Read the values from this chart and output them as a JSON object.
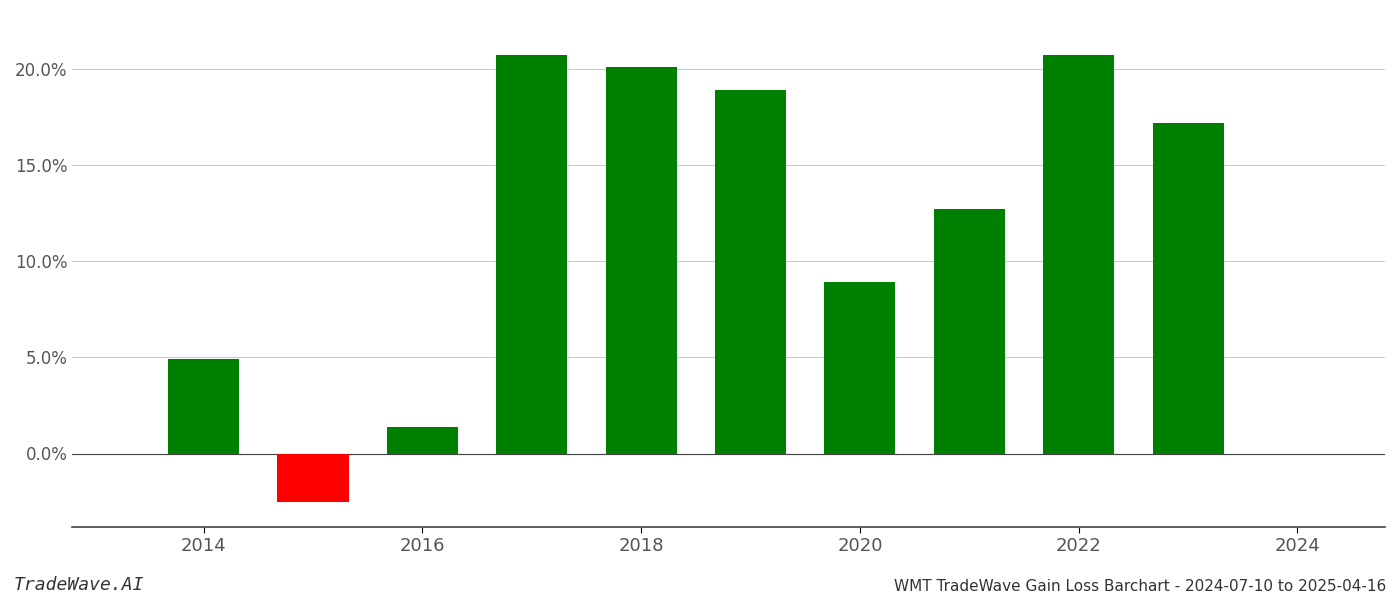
{
  "years": [
    2014,
    2015,
    2016,
    2017,
    2018,
    2019,
    2020,
    2021,
    2022,
    2023
  ],
  "values": [
    0.049,
    -0.025,
    0.014,
    0.207,
    0.201,
    0.189,
    0.089,
    0.127,
    0.207,
    0.172
  ],
  "colors": [
    "#008000",
    "#ff0000",
    "#008000",
    "#008000",
    "#008000",
    "#008000",
    "#008000",
    "#008000",
    "#008000",
    "#008000"
  ],
  "title": "WMT TradeWave Gain Loss Barchart - 2024-07-10 to 2025-04-16",
  "watermark": "TradeWave.AI",
  "ylim_min": -0.038,
  "ylim_max": 0.228,
  "background_color": "#ffffff",
  "grid_color": "#cccccc",
  "bar_width": 0.65,
  "xlim_min": 2012.8,
  "xlim_max": 2024.8,
  "yticks": [
    0.0,
    0.05,
    0.1,
    0.15,
    0.2
  ],
  "xticks": [
    2014,
    2016,
    2018,
    2020,
    2022,
    2024
  ]
}
